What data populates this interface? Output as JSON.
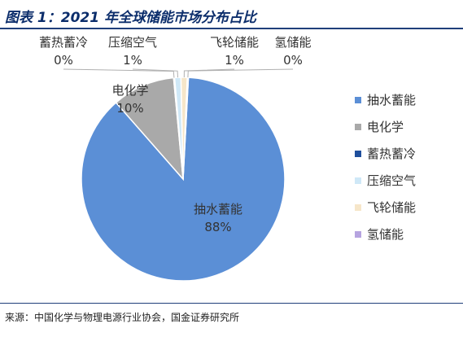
{
  "figure": {
    "title": "图表 1：2021 年全球储能市场分布占比",
    "source": "来源：中国化学与物理电源行业协会，国金证券研究所"
  },
  "chart_data": {
    "type": "pie",
    "title": "",
    "unit": "%",
    "legend_position": "right",
    "slices": [
      {
        "label": "抽水蓄能",
        "value": 88,
        "value_label": "88%",
        "color": "#5b8fd6"
      },
      {
        "label": "电化学",
        "value": 10,
        "value_label": "10%",
        "color": "#a9a9a9"
      },
      {
        "label": "蓄热蓄冷",
        "value": 0,
        "value_label": "0%",
        "color": "#1f4f9c"
      },
      {
        "label": "压缩空气",
        "value": 1,
        "value_label": "1%",
        "color": "#cfe8f7"
      },
      {
        "label": "飞轮储能",
        "value": 1,
        "value_label": "1%",
        "color": "#f6e6c9"
      },
      {
        "label": "氢储能",
        "value": 0,
        "value_label": "0%",
        "color": "#b6a4e0"
      }
    ]
  }
}
